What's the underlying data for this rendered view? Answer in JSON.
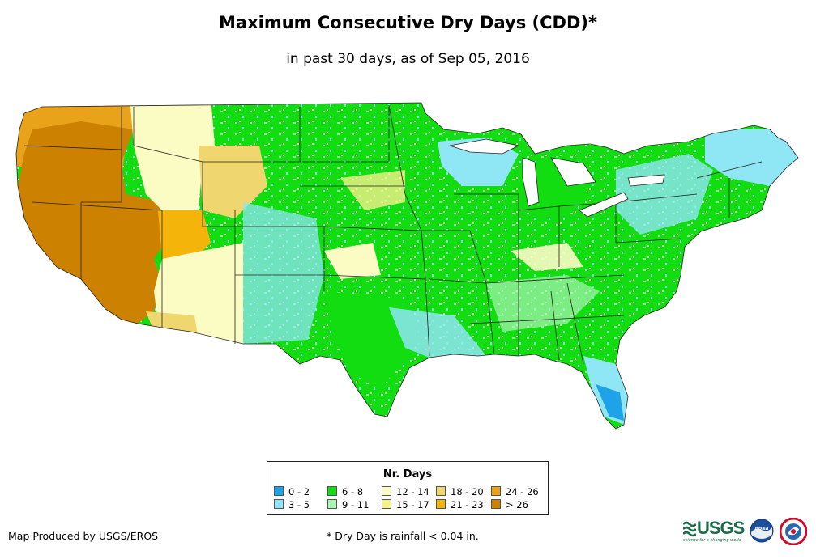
{
  "title": "Maximum Consecutive Dry Days (CDD)*",
  "subtitle": "in past 30 days, as of Sep 05, 2016",
  "legend": {
    "title": "Nr. Days",
    "items": [
      {
        "label": "0 - 2",
        "color": "#1fa3e8"
      },
      {
        "label": "3 - 5",
        "color": "#8fe6f5"
      },
      {
        "label": "6 - 8",
        "color": "#11dd11"
      },
      {
        "label": "9 - 11",
        "color": "#aaf4b4"
      },
      {
        "label": "12 - 14",
        "color": "#fbfbc4"
      },
      {
        "label": "15 - 17",
        "color": "#f4f08a"
      },
      {
        "label": "18 - 20",
        "color": "#f0d66e"
      },
      {
        "label": "21 - 23",
        "color": "#f5b409"
      },
      {
        "label": "24 - 26",
        "color": "#e9a31a"
      },
      {
        "label": "> 26",
        "color": "#cc8100"
      }
    ]
  },
  "credit": "Map Produced by USGS/EROS",
  "footnote": "* Dry Day is rainfall < 0.04 in.",
  "logos": {
    "usgs_text": "USGS",
    "usgs_tagline": "science for a changing world",
    "noaa_text": "noaa"
  },
  "map_regions": [
    {
      "name": "pacific-northwest",
      "category": "24 - 26"
    },
    {
      "name": "great-basin",
      "category": "> 26"
    },
    {
      "name": "california",
      "category": "> 26"
    },
    {
      "name": "northern-rockies",
      "category": "12 - 14"
    },
    {
      "name": "southwest",
      "category": "12 - 14"
    },
    {
      "name": "great-plains",
      "category": "6 - 8"
    },
    {
      "name": "midwest",
      "category": "6 - 8"
    },
    {
      "name": "great-lakes",
      "category": "3 - 5"
    },
    {
      "name": "southeast",
      "category": "6 - 8"
    },
    {
      "name": "gulf-coast",
      "category": "3 - 5"
    },
    {
      "name": "new-england",
      "category": "3 - 5"
    },
    {
      "name": "florida",
      "category": "0 - 2"
    }
  ]
}
